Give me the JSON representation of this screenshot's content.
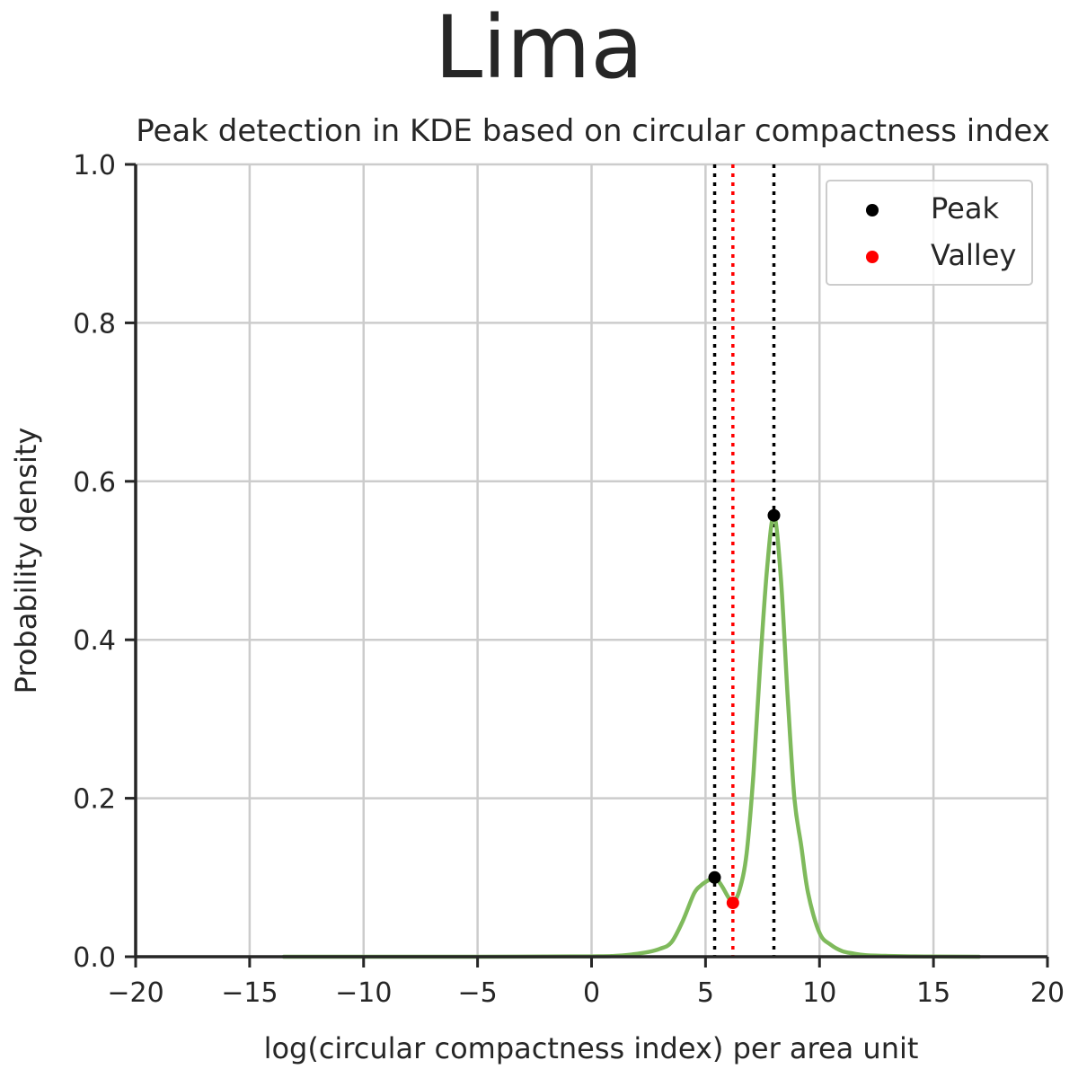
{
  "chart_data": {
    "type": "line",
    "suptitle": "Lima",
    "title": "Peak detection in KDE based on circular compactness index",
    "xlabel": "log(circular compactness index) per area unit",
    "ylabel": "Probability density",
    "xlim": [
      -20,
      20
    ],
    "ylim": [
      0,
      1.0
    ],
    "x_ticks": [
      -20,
      -15,
      -10,
      -5,
      0,
      5,
      10,
      15,
      20
    ],
    "x_tick_labels": [
      "−20",
      "−15",
      "−10",
      "−5",
      "0",
      "5",
      "10",
      "15",
      "20"
    ],
    "y_ticks": [
      0.0,
      0.2,
      0.4,
      0.6,
      0.8,
      1.0
    ],
    "y_tick_labels": [
      "0.0",
      "0.2",
      "0.4",
      "0.6",
      "0.8",
      "1.0"
    ],
    "grid": true,
    "legend_position": "top-right",
    "colors": {
      "kde": "#7fba5c",
      "peak": "#000000",
      "valley": "#ff0000",
      "grid": "#cccccc",
      "axis": "#262626"
    },
    "kde_curve": {
      "x": [
        -13.5,
        -10,
        -5,
        0,
        1,
        1.8,
        2.5,
        3,
        3.5,
        4,
        4.5,
        4.8,
        5.1,
        5.4,
        5.7,
        6.0,
        6.2,
        6.5,
        6.8,
        7.1,
        7.4,
        7.7,
        8.0,
        8.3,
        8.6,
        8.9,
        9.2,
        9.5,
        10.0,
        10.5,
        11,
        11.5,
        12,
        13,
        14,
        15,
        17
      ],
      "y": [
        0.0,
        0.0,
        0.0,
        0.0005,
        0.001,
        0.003,
        0.006,
        0.01,
        0.018,
        0.045,
        0.08,
        0.09,
        0.096,
        0.1,
        0.09,
        0.075,
        0.068,
        0.085,
        0.13,
        0.23,
        0.37,
        0.49,
        0.557,
        0.48,
        0.33,
        0.2,
        0.14,
        0.08,
        0.03,
        0.015,
        0.007,
        0.004,
        0.002,
        0.001,
        0.0005,
        0.0002,
        0.0
      ]
    },
    "peaks": [
      {
        "x": 5.4,
        "y": 0.1
      },
      {
        "x": 8.0,
        "y": 0.557
      }
    ],
    "valleys": [
      {
        "x": 6.2,
        "y": 0.068
      }
    ],
    "legend": [
      {
        "label": "Peak",
        "color": "#000000"
      },
      {
        "label": "Valley",
        "color": "#ff0000"
      }
    ]
  }
}
